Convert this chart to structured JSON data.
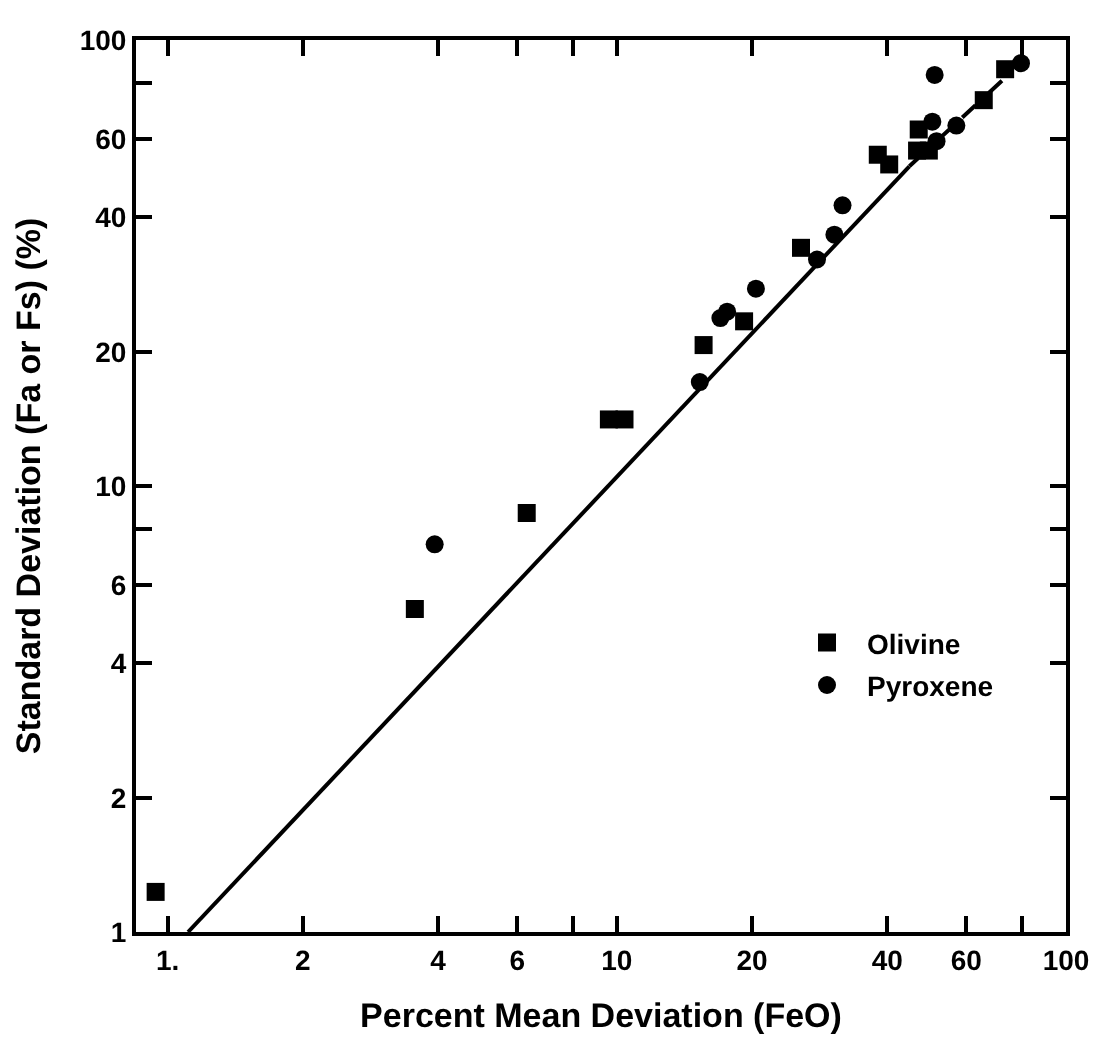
{
  "chart_data": {
    "type": "scatter",
    "xlabel": "Percent Mean Deviation (FeO)",
    "ylabel": "Standard Deviation (Fa or Fs) (%)",
    "log": "xy",
    "grid": false,
    "legend": "bottom right",
    "xlim": [
      0.85,
      100
    ],
    "ylim": [
      1,
      100
    ],
    "xticks": [
      {
        "value": 1,
        "label": "1."
      },
      2,
      4,
      6,
      {
        "value": 8,
        "label": null
      },
      10,
      20,
      40,
      60,
      {
        "value": 80,
        "label": null
      },
      100
    ],
    "yticks": [
      1,
      2,
      4,
      6,
      {
        "value": 8,
        "label": null
      },
      10,
      20,
      40,
      60,
      {
        "value": 80,
        "label": null
      },
      100
    ],
    "series": [
      {
        "name": "Olivine",
        "marker": "square",
        "color": "#000000",
        "x": [
          0.94,
          3.55,
          6.3,
          9.6,
          10.4,
          15.6,
          19.2,
          25.7,
          38.1,
          40.4,
          47,
          46.6,
          49.5,
          65.6,
          73.2
        ],
        "values": [
          1.23,
          5.3,
          8.7,
          14.1,
          14.1,
          20.7,
          23.4,
          34.2,
          55.3,
          52.6,
          63,
          56.5,
          56.5,
          73.3,
          86
        ]
      },
      {
        "name": "Pyroxene",
        "marker": "circle",
        "color": "#000000",
        "x": [
          3.93,
          15.3,
          17.0,
          17.6,
          20.4,
          27.9,
          30.5,
          31.8,
          51,
          50.4,
          51.5,
          57,
          79.4
        ],
        "values": [
          7.4,
          17.1,
          23.8,
          24.6,
          27.7,
          32.2,
          36.6,
          42.6,
          83.5,
          65.6,
          59.3,
          64.3,
          88.7
        ]
      },
      {
        "type": "line",
        "line_style": "solid",
        "color": "#000000",
        "x": [
          1.11,
          44.8
        ],
        "values": [
          1,
          52.1
        ]
      },
      {
        "type": "line",
        "line_style": "dashed",
        "color": "#000000",
        "x": [
          44.8,
          79.4
        ],
        "values": [
          52.1,
          88.7
        ]
      }
    ]
  }
}
